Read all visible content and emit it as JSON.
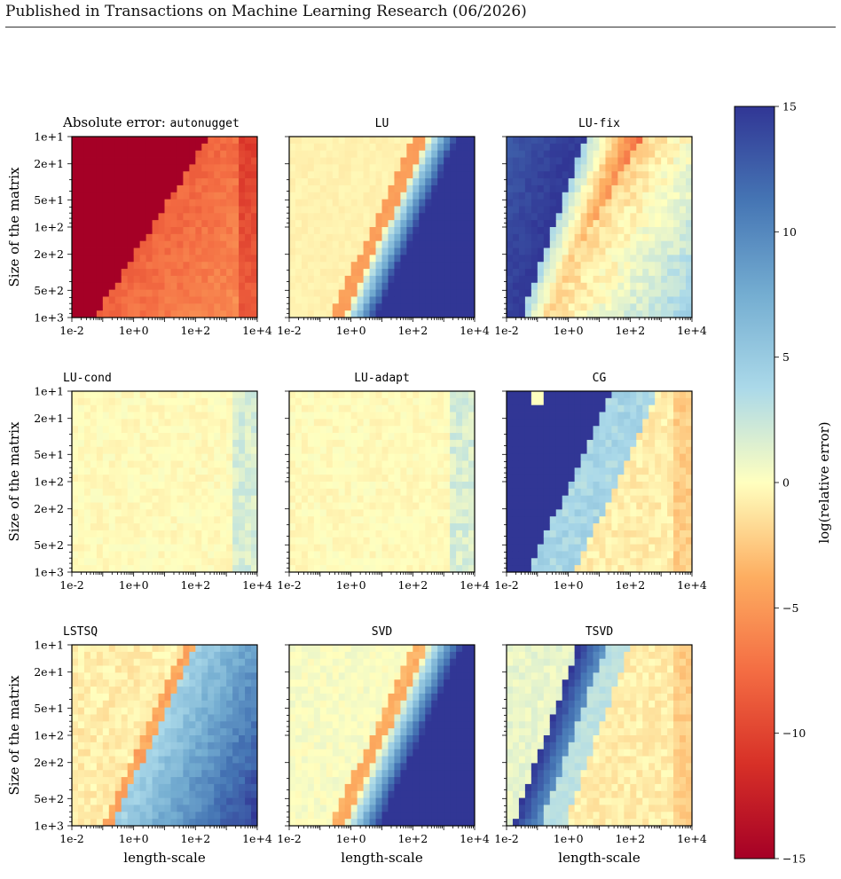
{
  "header": {
    "text": "Published in Transactions on Machine Learning Research (06/2026)"
  },
  "colors": {
    "neg_extreme": "#a50026",
    "neg": "#f46d43",
    "neutral": "#ffffbf",
    "pos": "#abd9e9",
    "pos_extreme": "#313695"
  },
  "chart_data": {
    "type": "heatmap",
    "grid": "3x3 panels",
    "x_label": "length-scale",
    "y_label": "Size of the matrix",
    "x_ticks": [
      "1e-2",
      "1e+0",
      "1e+2",
      "1e+4"
    ],
    "y_ticks": [
      "1e+1",
      "2e+1",
      "5e+1",
      "1e+2",
      "2e+2",
      "5e+2",
      "1e+3"
    ],
    "x_range": [
      0.01,
      10000
    ],
    "y_range": [
      10,
      1000
    ],
    "x_scale": "log",
    "y_scale": "log",
    "colorbar": {
      "label": "log(relative error)",
      "range": [
        -15,
        15
      ],
      "ticks": [
        "15",
        "10",
        "5",
        "0",
        "−5",
        "−10",
        "−15"
      ],
      "colormap": "RdYlBu"
    },
    "panels": [
      {
        "id": "autonugget",
        "title_prefix": "Absolute error: ",
        "title": "autonugget",
        "pattern": "sharp boundary; low-scale side saturated at −15, high-scale side near −8 to −5"
      },
      {
        "id": "LU",
        "title_prefix": "",
        "title": "LU",
        "pattern": "error near 0 for small length-scale, rising to saturated +15 past a diagonal boundary"
      },
      {
        "id": "LU-fix",
        "title_prefix": "",
        "title": "LU-fix",
        "pattern": "high error band on the upper-left, low error band along the diagonal, mild error elsewhere"
      },
      {
        "id": "LU-cond",
        "title_prefix": "",
        "title": "LU-cond",
        "pattern": "near 0 everywhere, slight increase at largest length-scales"
      },
      {
        "id": "LU-adapt",
        "title_prefix": "",
        "title": "LU-adapt",
        "pattern": "near 0 everywhere, slight increase at largest length-scales"
      },
      {
        "id": "CG",
        "title_prefix": "",
        "title": "CG",
        "pattern": "saturated +15 region on the left, moderate region along the diagonal, near 0 on the right"
      },
      {
        "id": "LSTSQ",
        "title_prefix": "",
        "title": "LSTSQ",
        "pattern": "near 0 for small length-scale, rising to +8 to +12 past a diagonal boundary"
      },
      {
        "id": "SVD",
        "title_prefix": "",
        "title": "SVD",
        "pattern": "near 0 for small length-scale, rising to saturated +15 past a diagonal boundary"
      },
      {
        "id": "TSVD",
        "title_prefix": "",
        "title": "TSVD",
        "pattern": "narrow high-error diagonal band, near 0 on both sides"
      }
    ]
  }
}
